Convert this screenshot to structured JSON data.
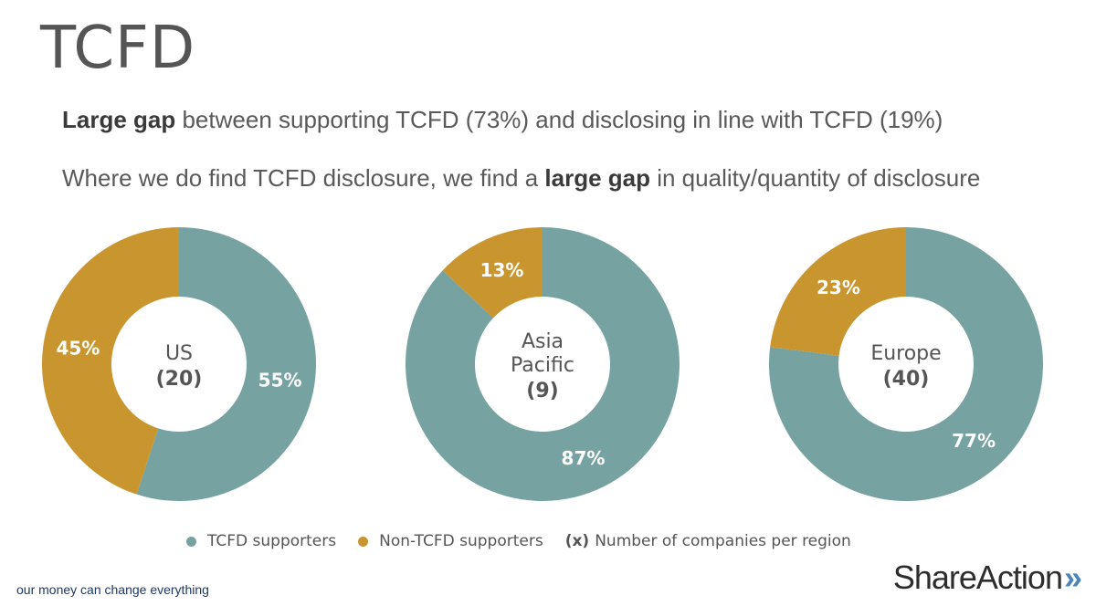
{
  "header": {
    "title": "TCFD",
    "line1": {
      "bold": "Large gap",
      "rest": " between supporting TCFD (73%) and disclosing in line with TCFD (19%)"
    },
    "line2": {
      "pre": "Where we do find TCFD disclosure, we find a ",
      "bold": "large gap",
      "post": " in quality/quantity of disclosure"
    }
  },
  "colors": {
    "supporters": "#76a3a1",
    "non_supporters": "#c9952e"
  },
  "chart_data": [
    {
      "type": "pie",
      "center_label": [
        "US"
      ],
      "center_count": "(20)",
      "slices": [
        {
          "category": "TCFD supporters",
          "value": 55,
          "label": "55%"
        },
        {
          "category": "Non-TCFD supporters",
          "value": 45,
          "label": "45%"
        }
      ]
    },
    {
      "type": "pie",
      "center_label": [
        "Asia",
        "Pacific"
      ],
      "center_count": "(9)",
      "slices": [
        {
          "category": "TCFD supporters",
          "value": 87,
          "label": "87%"
        },
        {
          "category": "Non-TCFD supporters",
          "value": 13,
          "label": "13%"
        }
      ]
    },
    {
      "type": "pie",
      "center_label": [
        "Europe"
      ],
      "center_count": "(40)",
      "slices": [
        {
          "category": "TCFD supporters",
          "value": 77,
          "label": "77%"
        },
        {
          "category": "Non-TCFD supporters",
          "value": 23,
          "label": "23%"
        }
      ]
    }
  ],
  "legend": {
    "supporters": "TCFD supporters",
    "non_supporters": "Non-TCFD supporters",
    "count_key": "(x)",
    "count_text": "Number of companies per region"
  },
  "footer": {
    "tagline": "our money can change everything",
    "brand": "ShareAction",
    "brand_mark": "»"
  }
}
